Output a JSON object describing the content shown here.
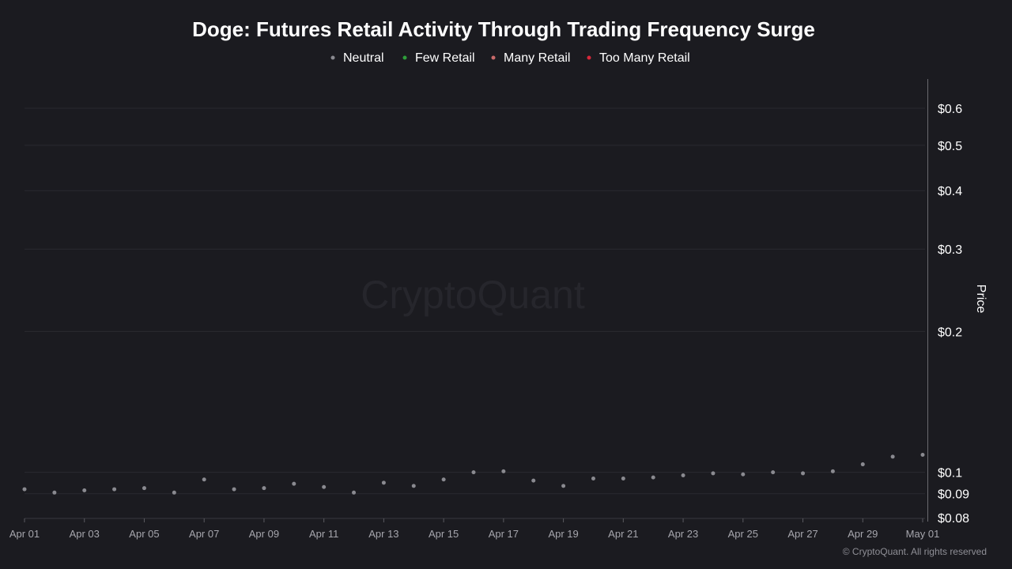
{
  "chart_data": {
    "type": "scatter",
    "title": "Doge: Futures Retail Activity Through Trading Frequency Surge",
    "ylabel": "Price",
    "yscale": "log",
    "ylim": [
      0.08,
      0.68
    ],
    "xlim": [
      "Apr 01",
      "May 01"
    ],
    "y_ticks": [
      {
        "value": 0.6,
        "label": "$0.6"
      },
      {
        "value": 0.5,
        "label": "$0.5"
      },
      {
        "value": 0.4,
        "label": "$0.4"
      },
      {
        "value": 0.3,
        "label": "$0.3"
      },
      {
        "value": 0.2,
        "label": "$0.2"
      },
      {
        "value": 0.1,
        "label": "$0.1"
      },
      {
        "value": 0.09,
        "label": "$0.09"
      },
      {
        "value": 0.08,
        "label": "$0.08"
      }
    ],
    "x_ticks": [
      "Apr 01",
      "Apr 03",
      "Apr 05",
      "Apr 07",
      "Apr 09",
      "Apr 11",
      "Apr 13",
      "Apr 15",
      "Apr 17",
      "Apr 19",
      "Apr 21",
      "Apr 23",
      "Apr 25",
      "Apr 27",
      "Apr 29",
      "May 01"
    ],
    "legend_position": "top-center",
    "grid": true,
    "series": [
      {
        "name": "Neutral",
        "color": "#8a8a90",
        "x": [
          "Apr 01",
          "Apr 02",
          "Apr 03",
          "Apr 04",
          "Apr 05",
          "Apr 06",
          "Apr 07",
          "Apr 08",
          "Apr 09",
          "Apr 10",
          "Apr 11",
          "Apr 12",
          "Apr 13",
          "Apr 14",
          "Apr 15",
          "Apr 16",
          "Apr 17",
          "Apr 18",
          "Apr 19",
          "Apr 20",
          "Apr 21",
          "Apr 22",
          "Apr 23",
          "Apr 24",
          "Apr 25",
          "Apr 26",
          "Apr 27",
          "Apr 28",
          "Apr 29",
          "Apr 30",
          "May 01"
        ],
        "values": [
          0.092,
          0.0905,
          0.0915,
          0.092,
          0.0925,
          0.0905,
          0.0965,
          0.092,
          0.0925,
          0.0945,
          0.093,
          0.0905,
          0.095,
          0.0935,
          0.0965,
          0.1,
          0.1005,
          0.096,
          0.0935,
          0.097,
          0.097,
          0.0975,
          0.0985,
          0.0995,
          0.099,
          0.1,
          0.0995,
          0.1005,
          0.104,
          0.108,
          0.109
        ]
      },
      {
        "name": "Few Retail",
        "color": "#2e9e3a",
        "x": [],
        "values": []
      },
      {
        "name": "Many Retail",
        "color": "#c96a6a",
        "x": [],
        "values": []
      },
      {
        "name": "Too Many Retail",
        "color": "#d8283a",
        "x": [],
        "values": []
      }
    ]
  },
  "watermark": "CryptoQuant",
  "copyright": "© CryptoQuant. All rights reserved",
  "colors": {
    "background": "#1b1b20",
    "grid": "#2a2a30",
    "axis": "#6a6a70"
  }
}
